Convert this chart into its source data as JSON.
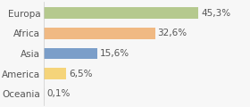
{
  "categories": [
    "Europa",
    "Africa",
    "Asia",
    "America",
    "Oceania"
  ],
  "values": [
    45.3,
    32.6,
    15.6,
    6.5,
    0.1
  ],
  "labels": [
    "45,3%",
    "32,6%",
    "15,6%",
    "6,5%",
    "0,1%"
  ],
  "bar_colors": [
    "#b5c98e",
    "#f0b983",
    "#7b9ec9",
    "#f5d47a",
    "#e8e8e8"
  ],
  "background_color": "#f7f7f7",
  "xlim": [
    0,
    60
  ],
  "bar_height": 0.55,
  "label_fontsize": 7.5,
  "tick_fontsize": 7.5,
  "figsize": [
    2.8,
    1.2
  ],
  "dpi": 100
}
